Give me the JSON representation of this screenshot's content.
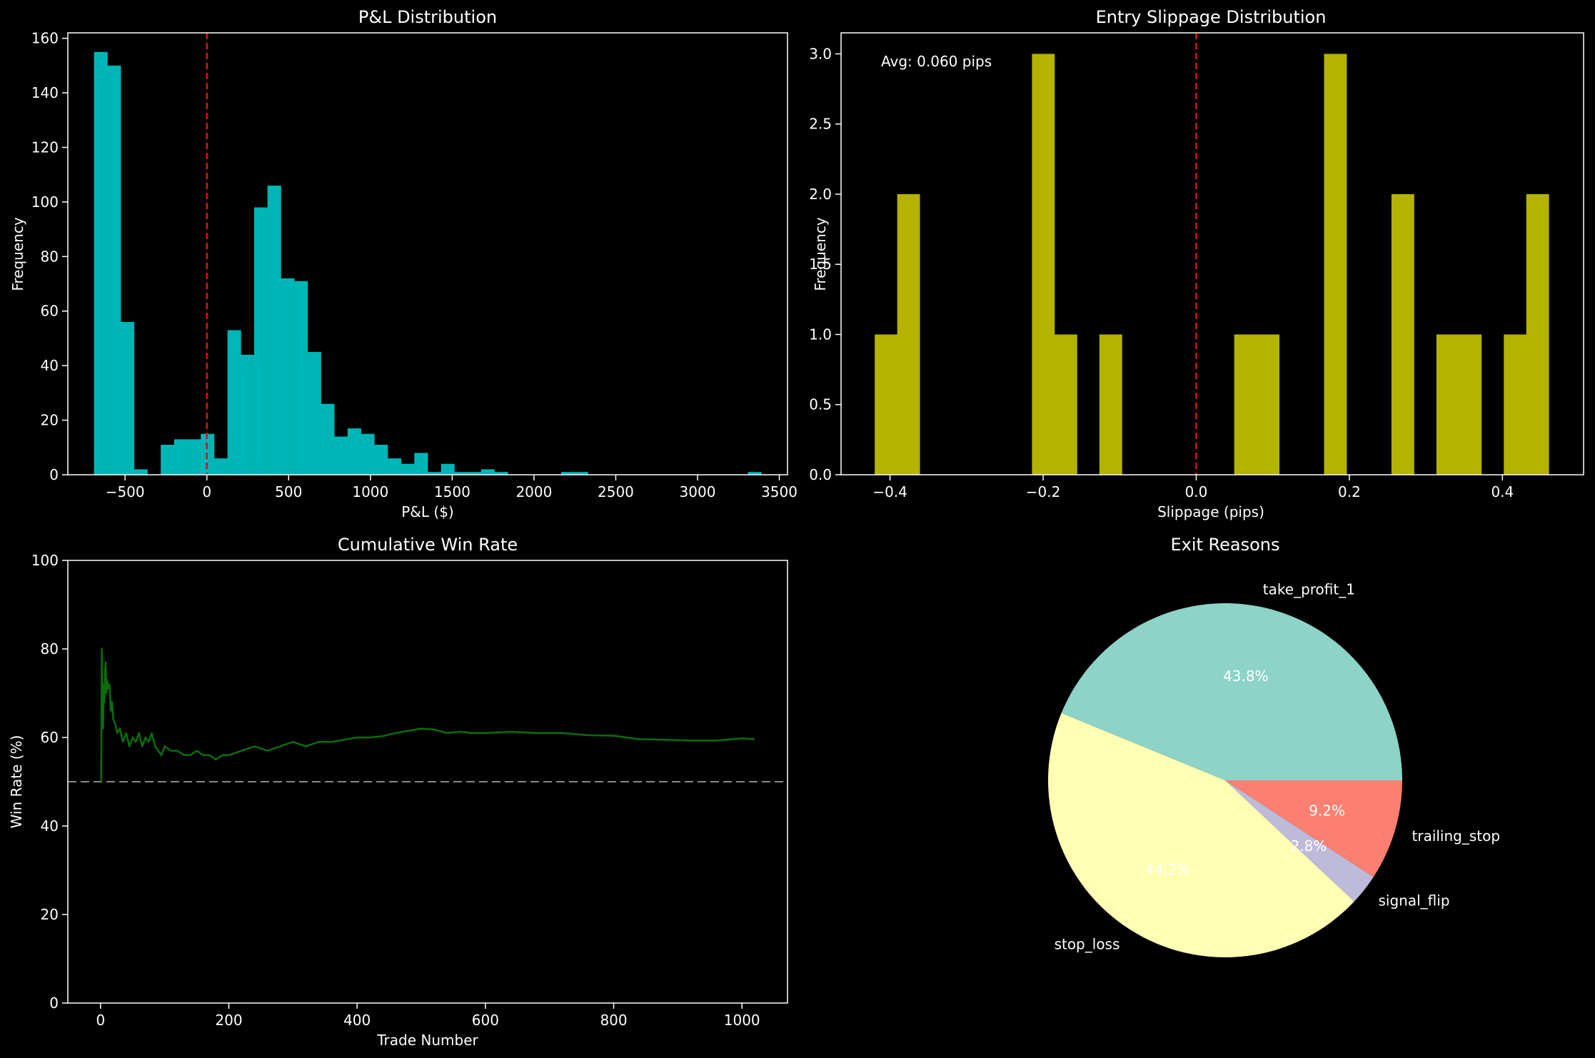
{
  "chart_data": [
    {
      "id": "pnl",
      "type": "bar",
      "title": "P&L Distribution",
      "xlabel": "P&L ($)",
      "ylabel": "Frequency",
      "xlim": [
        -850,
        3550
      ],
      "ylim": [
        0,
        162
      ],
      "xticks": [
        -500,
        0,
        500,
        1000,
        1500,
        2000,
        2500,
        3000,
        3500
      ],
      "yticks": [
        0,
        20,
        40,
        60,
        80,
        100,
        120,
        140,
        160
      ],
      "bar_color": "#00b5b5",
      "bin_width": 81.6,
      "bins": [
        {
          "x0": -690,
          "count": 155
        },
        {
          "x0": -608.4,
          "count": 150
        },
        {
          "x0": -526.8,
          "count": 56
        },
        {
          "x0": -445.2,
          "count": 2
        },
        {
          "x0": -363.6,
          "count": 0
        },
        {
          "x0": -282,
          "count": 11
        },
        {
          "x0": -200.4,
          "count": 13
        },
        {
          "x0": -118.8,
          "count": 13
        },
        {
          "x0": -37.2,
          "count": 15
        },
        {
          "x0": 44.4,
          "count": 6
        },
        {
          "x0": 126,
          "count": 53
        },
        {
          "x0": 207.6,
          "count": 44
        },
        {
          "x0": 289.2,
          "count": 98
        },
        {
          "x0": 370.8,
          "count": 106
        },
        {
          "x0": 452.4,
          "count": 72
        },
        {
          "x0": 534,
          "count": 71
        },
        {
          "x0": 615.6,
          "count": 45
        },
        {
          "x0": 697.2,
          "count": 26
        },
        {
          "x0": 778.8,
          "count": 14
        },
        {
          "x0": 860.4,
          "count": 17
        },
        {
          "x0": 942,
          "count": 15
        },
        {
          "x0": 1023.6,
          "count": 11
        },
        {
          "x0": 1105.2,
          "count": 6
        },
        {
          "x0": 1186.8,
          "count": 4
        },
        {
          "x0": 1268.4,
          "count": 8
        },
        {
          "x0": 1350,
          "count": 1
        },
        {
          "x0": 1431.6,
          "count": 4
        },
        {
          "x0": 1513.2,
          "count": 1
        },
        {
          "x0": 1594.8,
          "count": 1
        },
        {
          "x0": 1676.4,
          "count": 2
        },
        {
          "x0": 1758,
          "count": 1
        },
        {
          "x0": 1839.6,
          "count": 0
        },
        {
          "x0": 1921.2,
          "count": 0
        },
        {
          "x0": 2002.8,
          "count": 0
        },
        {
          "x0": 2084.4,
          "count": 0
        },
        {
          "x0": 2166,
          "count": 1
        },
        {
          "x0": 2247.6,
          "count": 1
        },
        {
          "x0": 2329.2,
          "count": 0
        },
        {
          "x0": 2410.8,
          "count": 0
        },
        {
          "x0": 2492.4,
          "count": 0
        },
        {
          "x0": 2574,
          "count": 0
        },
        {
          "x0": 2655.6,
          "count": 0
        },
        {
          "x0": 2737.2,
          "count": 0
        },
        {
          "x0": 2818.8,
          "count": 0
        },
        {
          "x0": 2900.4,
          "count": 0
        },
        {
          "x0": 2982,
          "count": 0
        },
        {
          "x0": 3063.6,
          "count": 0
        },
        {
          "x0": 3145.2,
          "count": 0
        },
        {
          "x0": 3226.8,
          "count": 0
        },
        {
          "x0": 3308.4,
          "count": 1
        }
      ],
      "reference_line": {
        "x": 0,
        "color": "#e01010",
        "style": "dashed"
      },
      "grid": false
    },
    {
      "id": "slip",
      "type": "bar",
      "title": "Entry Slippage Distribution",
      "xlabel": "Slippage (pips)",
      "ylabel": "Frequency",
      "xlim": [
        -0.464,
        0.506
      ],
      "ylim": [
        0,
        3.15
      ],
      "xticks": [
        -0.4,
        -0.2,
        0.0,
        0.2,
        0.4
      ],
      "xtick_labels": [
        "−0.4",
        "−0.2",
        "0.0",
        "0.2",
        "0.4"
      ],
      "yticks": [
        0.0,
        0.5,
        1.0,
        1.5,
        2.0,
        2.5,
        3.0
      ],
      "ytick_labels": [
        "0.0",
        "0.5",
        "1.0",
        "1.5",
        "2.0",
        "2.5",
        "3.0"
      ],
      "bar_color": "#b3b300",
      "bin_width": 0.02935,
      "bins": [
        {
          "x0": -0.42,
          "count": 1
        },
        {
          "x0": -0.39065,
          "count": 2
        },
        {
          "x0": -0.3613,
          "count": 0
        },
        {
          "x0": -0.33195,
          "count": 0
        },
        {
          "x0": -0.3026,
          "count": 0
        },
        {
          "x0": -0.27325,
          "count": 0
        },
        {
          "x0": -0.2439,
          "count": 0
        },
        {
          "x0": -0.21455,
          "count": 3
        },
        {
          "x0": -0.1852,
          "count": 1
        },
        {
          "x0": -0.15585,
          "count": 0
        },
        {
          "x0": -0.1265,
          "count": 1
        },
        {
          "x0": -0.09715,
          "count": 0
        },
        {
          "x0": -0.0678,
          "count": 0
        },
        {
          "x0": -0.03845,
          "count": 0
        },
        {
          "x0": -0.0091,
          "count": 0
        },
        {
          "x0": 0.02025,
          "count": 0
        },
        {
          "x0": 0.0496,
          "count": 1
        },
        {
          "x0": 0.07895,
          "count": 1
        },
        {
          "x0": 0.1083,
          "count": 0
        },
        {
          "x0": 0.13765,
          "count": 0
        },
        {
          "x0": 0.167,
          "count": 3
        },
        {
          "x0": 0.19635,
          "count": 0
        },
        {
          "x0": 0.2257,
          "count": 0
        },
        {
          "x0": 0.25505,
          "count": 2
        },
        {
          "x0": 0.2844,
          "count": 0
        },
        {
          "x0": 0.31375,
          "count": 1
        },
        {
          "x0": 0.3431,
          "count": 1
        },
        {
          "x0": 0.37245,
          "count": 0
        },
        {
          "x0": 0.4018,
          "count": 1
        },
        {
          "x0": 0.43115,
          "count": 2
        }
      ],
      "annotation": "Avg: 0.060 pips",
      "reference_line": {
        "x": 0,
        "color": "#e01010",
        "style": "dashed"
      },
      "grid": false
    },
    {
      "id": "winrate",
      "type": "line",
      "title": "Cumulative Win Rate",
      "xlabel": "Trade Number",
      "ylabel": "Win Rate (%)",
      "xlim": [
        -51,
        1071
      ],
      "ylim": [
        0,
        100
      ],
      "xticks": [
        0,
        200,
        400,
        600,
        800,
        1000
      ],
      "yticks": [
        0,
        20,
        40,
        60,
        80,
        100
      ],
      "line_color": "#0a6e0a",
      "x": [
        1,
        2,
        3,
        4,
        5,
        6,
        7,
        8,
        9,
        10,
        12,
        14,
        16,
        18,
        20,
        23,
        26,
        30,
        35,
        40,
        45,
        50,
        55,
        60,
        65,
        70,
        75,
        80,
        85,
        90,
        95,
        100,
        110,
        120,
        130,
        140,
        150,
        160,
        170,
        180,
        190,
        200,
        220,
        240,
        260,
        280,
        300,
        320,
        340,
        360,
        380,
        400,
        420,
        440,
        460,
        480,
        500,
        520,
        540,
        560,
        580,
        600,
        640,
        680,
        720,
        760,
        800,
        840,
        880,
        920,
        960,
        1000,
        1020
      ],
      "y": [
        50,
        80,
        67,
        62,
        72,
        68,
        75,
        77,
        70,
        73,
        71,
        72,
        66,
        68,
        64,
        63,
        61,
        62,
        59,
        61,
        58,
        60,
        59,
        61,
        58,
        60,
        59,
        61,
        58,
        57,
        56,
        58,
        57,
        57,
        56,
        56,
        57,
        56,
        56,
        55,
        56,
        56,
        57,
        58,
        57,
        58,
        59,
        58,
        59,
        59,
        59.5,
        60,
        60,
        60.3,
        61,
        61.5,
        62,
        61.8,
        61,
        61.3,
        61,
        61,
        61.3,
        61,
        61,
        60.5,
        60.4,
        59.6,
        59.5,
        59.3,
        59.3,
        59.8,
        59.6
      ],
      "reference_line": {
        "y": 50,
        "color": "#888888",
        "style": "dashed"
      },
      "grid": false
    },
    {
      "id": "exits",
      "type": "pie",
      "title": "Exit Reasons",
      "slices": [
        {
          "label": "take_profit_1",
          "pct": 43.8,
          "pct_label": "43.8%",
          "color": "#8dd3c7"
        },
        {
          "label": "stop_loss",
          "pct": 44.2,
          "pct_label": "44.2%",
          "color": "#ffffb3"
        },
        {
          "label": "signal_flip",
          "pct": 2.8,
          "pct_label": "2.8%",
          "color": "#bebada"
        },
        {
          "label": "trailing_stop",
          "pct": 9.2,
          "pct_label": "9.2%",
          "color": "#fb8072"
        }
      ],
      "start_angle_deg": 0,
      "direction": "counterclockwise"
    }
  ]
}
